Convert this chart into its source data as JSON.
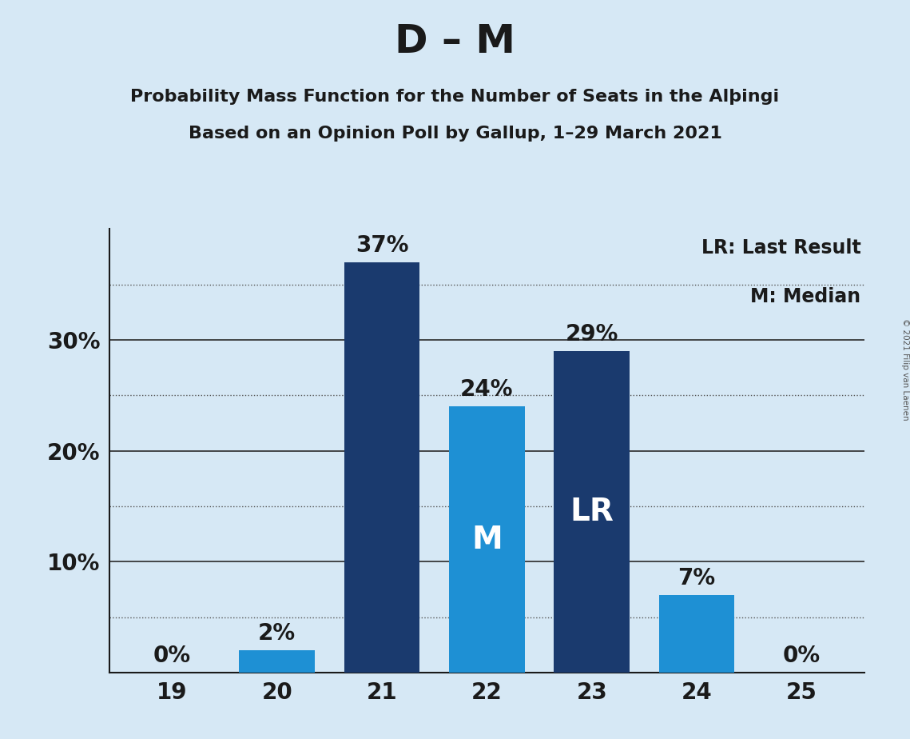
{
  "title": "D – M",
  "subtitle1": "Probability Mass Function for the Number of Seats in the Alþingi",
  "subtitle2": "Based on an Opinion Poll by Gallup, 1–29 March 2021",
  "categories": [
    19,
    20,
    21,
    22,
    23,
    24,
    25
  ],
  "values": [
    0,
    2,
    37,
    24,
    29,
    7,
    0
  ],
  "bar_colors": [
    "#1e90d4",
    "#1e90d4",
    "#1a3a6e",
    "#1e90d4",
    "#1a3a6e",
    "#1e90d4",
    "#1e90d4"
  ],
  "special_labels": {
    "22": "M",
    "23": "LR"
  },
  "legend_text": [
    "LR: Last Result",
    "M: Median"
  ],
  "copyright": "© 2021 Filip van Laenen",
  "background_color": "#d6e8f5",
  "dark_blue": "#1a3a6e",
  "light_blue": "#1e90d4",
  "ylim": [
    0,
    40
  ],
  "solid_gridlines": [
    10,
    20,
    30
  ],
  "dotted_gridlines": [
    5,
    15,
    25,
    35
  ],
  "ytick_positions": [
    10,
    20,
    30
  ],
  "ytick_labels": [
    "10%",
    "20%",
    "30%"
  ],
  "title_fontsize": 36,
  "subtitle_fontsize": 16,
  "tick_fontsize": 20,
  "legend_fontsize": 17,
  "bar_label_fontsize": 20,
  "special_label_fontsize": 28
}
